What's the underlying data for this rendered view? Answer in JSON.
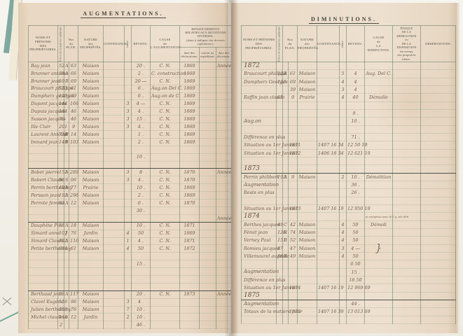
{
  "colors": {
    "paper_left": "#ead9c5",
    "paper_right": "#eee0cf",
    "ink": "#6e5c4a",
    "printed": "#4b4f46",
    "grid_line": "#8fa08c",
    "edge_teal": "#7fa8a0",
    "gutter_shadow": "#5a422c"
  },
  "left_page": {
    "title": "AUGMENTATIONS.",
    "columns": {
      "name": "NOMS ET PRÉNOMS\nDES\nPROPRIÉTAIRES.",
      "folio": "Folios de la matrice cadastrale.",
      "plan": "Nos\ndu\nPLAN.",
      "nature": "NATURE\ndes\nPROPRIÉTÉS.",
      "contenance": "CONTENANCE.",
      "classe": "classe",
      "revenu": "REVENU.",
      "cause": "CAUSE\nde\nL'AUGMENTATION.",
      "renseignements": "RENSEIGNEMENTS\nRELATIFS AUX MUTATIONS DIVERSES.\n(dates à indiquer des diverses opérations.)",
      "sub1": "date des\ndéclarations.",
      "sub2": "extrait ou\nexpédition.",
      "sub3": "date des\ndécisions."
    },
    "rows": [
      {
        "cells": [
          "Bay jean",
          "52",
          "A",
          "63",
          "Maison",
          "",
          "",
          "20 .",
          "C. N.",
          "1869",
          "",
          "Année"
        ]
      },
      {
        "cells": [
          "Brunner antoine",
          "59",
          "A",
          "66",
          "Maison",
          "",
          "",
          "2 .",
          "C. construction",
          "1869",
          "",
          ""
        ]
      },
      {
        "cells": [
          "Brunner jean",
          "59",
          "B",
          "69",
          "Maison",
          "",
          "",
          "20 ―",
          "C. N.",
          "1869",
          "",
          ""
        ]
      },
      {
        "cells": [
          "Braucourt philippe",
          "123",
          "",
          "61",
          "Maison",
          "",
          "",
          "6 .",
          "Aug.on Del C.",
          "1869",
          "",
          ""
        ]
      },
      {
        "cells": [
          "Dumpherz georges",
          "123",
          "",
          "69",
          "Maison",
          "",
          "",
          "6 .",
          "Aug.on de C.",
          "1869",
          "",
          ""
        ]
      },
      {
        "cells": [
          "Dupont jacques",
          "144",
          "",
          "166",
          "Maison",
          "",
          "3",
          "4 ―",
          "C. N.",
          "1869",
          "",
          ""
        ]
      },
      {
        "cells": [
          "Dupuis jacques",
          "144",
          "",
          "46",
          "Maison",
          "",
          "3",
          "4 .",
          "C. N.",
          "1869",
          "",
          ""
        ]
      },
      {
        "cells": [
          "Susson jacques",
          "79",
          "",
          "46",
          "Maison",
          "",
          "3",
          "15 .",
          "C. N.",
          "1869",
          "",
          ""
        ]
      },
      {
        "cells": [
          "Ille Clair",
          "201",
          "",
          "9",
          "Maison",
          "",
          "3",
          "4 .",
          "C. N.",
          "1869",
          "",
          ""
        ]
      },
      {
        "cells": [
          "Laurent Antoine",
          "738",
          "B",
          "14",
          "Maison",
          "",
          "",
          "1 .",
          "C. N.",
          "1869",
          "",
          ""
        ]
      },
      {
        "cells": [
          "Imnard jean",
          "149",
          "B",
          "103",
          "Maison",
          "",
          "",
          "2 .",
          "C. N.",
          "1869",
          "",
          ""
        ]
      },
      {
        "cls": "dashrow",
        "cells": [
          "",
          "",
          "",
          "",
          "",
          "",
          "",
          "",
          "",
          "",
          "",
          ""
        ]
      },
      {
        "cells": [
          "",
          "",
          "",
          "",
          "",
          "",
          "",
          "10 .",
          "",
          "",
          "",
          ""
        ]
      },
      {
        "cls": "hrule",
        "cells": [
          "",
          "",
          "",
          "",
          "",
          "",
          "",
          "",
          "",
          "",
          "",
          ""
        ]
      },
      {
        "cells": [
          "Bobet pierre",
          "152",
          "A",
          "289",
          "Maison",
          "",
          "3",
          "8",
          "C. N.",
          "1870",
          "",
          "Année"
        ]
      },
      {
        "cells": [
          "Robert Claude",
          "96",
          "S",
          "06",
          "Maison",
          "",
          "3",
          "4 .",
          "C. N.",
          "1870",
          "",
          ""
        ]
      },
      {
        "cells": [
          "Perrin berthelemy",
          "103",
          "A",
          "77",
          "Prairie",
          "",
          "",
          "10 .",
          "C. N.",
          "1869",
          "",
          ""
        ]
      },
      {
        "cells": [
          "Persson jean",
          "192",
          "A",
          "296",
          "Maison",
          "",
          "",
          "2 .",
          "C. N.",
          "1869",
          "",
          ""
        ]
      },
      {
        "cells": [
          "Perrote femme",
          "93",
          "A",
          "12",
          "Maison",
          "",
          "",
          "6 .",
          "C. N.",
          "1870",
          "",
          ""
        ]
      },
      {
        "cls": "tot",
        "cells": [
          "",
          "",
          "",
          "",
          "",
          "",
          "",
          "30 .",
          "",
          "",
          "",
          ""
        ]
      },
      {
        "cls": "hrule",
        "cells": [
          "",
          "",
          "",
          "",
          "",
          "",
          "",
          "",
          "",
          "",
          "",
          "Année"
        ]
      },
      {
        "cells": [
          "Dauphine Pier",
          "53",
          "A",
          "18",
          "Maison",
          "",
          "",
          "10 .",
          "C. N.",
          "1871",
          "",
          ""
        ]
      },
      {
        "cells": [
          "Simard anne",
          "101",
          "J",
          "76",
          "Jardin",
          "",
          "4",
          "50",
          "C. N.",
          "1869",
          "",
          ""
        ]
      },
      {
        "cells": [
          "Simard Claude",
          "192",
          "A",
          "116",
          "Maison",
          "",
          "1",
          "4 .",
          "C. N.",
          "1871",
          "",
          ""
        ]
      },
      {
        "cells": [
          "Petite berthelemy",
          "98",
          "L",
          "61",
          "Maison",
          "",
          "4",
          "50",
          "C. N.",
          "1872",
          "",
          ""
        ]
      },
      {
        "cls": "dashrow",
        "cells": [
          "",
          "",
          "",
          "",
          "",
          "",
          "",
          "",
          "",
          "",
          "",
          ""
        ]
      },
      {
        "cells": [
          "",
          "",
          "",
          "",
          "",
          "",
          "",
          "15 .",
          "",
          "",
          "",
          ""
        ]
      },
      {
        "cells": [
          "",
          "",
          "",
          "",
          "",
          "",
          "",
          "",
          "",
          "",
          "",
          ""
        ]
      },
      {
        "cells": [
          "",
          "",
          "",
          "",
          "",
          "",
          "",
          "",
          "",
          "",
          "",
          ""
        ]
      },
      {
        "cls": "hrule",
        "cells": [
          "",
          "",
          "",
          "",
          "",
          "",
          "",
          "",
          "",
          "",
          "",
          ""
        ]
      },
      {
        "cells": [
          "Berthaud jean",
          "93",
          "A",
          "117",
          "Maison",
          "",
          "",
          "20 .",
          "C. N.",
          "1873",
          "",
          "Année"
        ]
      },
      {
        "cells": [
          "Clavel Eugène",
          "116",
          "",
          "96",
          "Maison",
          "",
          "3",
          "4 .",
          "",
          "",
          "",
          ""
        ]
      },
      {
        "cells": [
          "Julien berthelemy",
          "103",
          "",
          "76",
          "Maison",
          "",
          "7",
          "10 .",
          "",
          "",
          "",
          ""
        ]
      },
      {
        "cells": [
          "Michel claude",
          "148",
          "a",
          "12",
          "Jardin",
          "",
          "2",
          "10 .",
          "",
          "",
          "",
          ""
        ]
      },
      {
        "cls": "tot",
        "cells": [
          "",
          "2",
          "",
          "",
          "",
          "",
          "",
          "46 .",
          "",
          "",
          "",
          ""
        ]
      }
    ]
  },
  "right_page": {
    "title": "DIMINUTIONS.",
    "columns": {
      "name": "NOMS ET PRÉNOMS\nDES\nPROPRIÉTAIRES.",
      "folio": "Folios de la matrice cadastrale.",
      "plan": "Nos\ndu\nPLAN.",
      "nature": "NATURE\ndes\nPROPRIÉTÉS.",
      "contenance": "CONTENANCE.",
      "classe": "classe",
      "revenu": "REVENU.",
      "cause": "CAUSE\nde\nLA DIMINUTION.",
      "epoque": "ÉPOQUE\nDE LA DÉMOLITION\nou\nDE LA DISPARITION\ndu revenu\ndes propriétés bâties.",
      "observations": "OBSERVATIONS."
    },
    "rows": [
      {
        "cls": "yearrow",
        "cells": [
          "1872",
          "",
          "",
          "",
          "",
          "",
          "",
          "",
          "",
          "",
          ""
        ]
      },
      {
        "cells": [
          "Braucourt philippe",
          "123",
          "A",
          "61",
          "Maison",
          "",
          "5",
          "4",
          "Aug. Del C.",
          "",
          ""
        ]
      },
      {
        "cells": [
          "Dumpherz Georges",
          "123",
          "",
          "69",
          "Maison",
          "",
          "4",
          "4",
          "",
          "",
          ""
        ]
      },
      {
        "cells": [
          "",
          "",
          "",
          "39",
          "Maison",
          "",
          "3",
          "4",
          "",
          "",
          ""
        ]
      },
      {
        "cells": [
          "Raffin jean claude",
          "61",
          "",
          "9",
          "Prairie",
          "",
          "4",
          "40",
          "Démolie",
          "",
          ""
        ]
      },
      {
        "cls": "dashrow",
        "cells": [
          "",
          "",
          "",
          "",
          "",
          "",
          "",
          "",
          "",
          "",
          ""
        ]
      },
      {
        "cells": [
          "",
          "",
          "",
          "",
          "",
          "",
          "",
          "9 .",
          "",
          "",
          ""
        ]
      },
      {
        "cls": "aug",
        "cells": [
          "Aug.on",
          "",
          "",
          "",
          "",
          "",
          "",
          "10 .",
          "",
          "",
          ""
        ]
      },
      {
        "cls": "dashrow",
        "cells": [
          "",
          "",
          "",
          "",
          "",
          "",
          "",
          "",
          "",
          "",
          ""
        ]
      },
      {
        "cells": [
          "Différence  en  plus",
          "",
          "",
          "",
          "",
          "",
          "",
          "71 .",
          "",
          "",
          ""
        ]
      },
      {
        "cells": [
          "Situation au 1er Janvier",
          "",
          "",
          "1871",
          "",
          "1407 16 34",
          "",
          "12 50 19",
          "",
          "",
          ""
        ]
      },
      {
        "cells": [
          "Situation au 1er Janvier",
          "",
          "",
          "1872",
          "",
          "1406 18 34",
          "",
          "12 621 19",
          "",
          "",
          ""
        ]
      },
      {
        "cells": [
          "",
          "",
          "",
          "",
          "",
          "",
          "",
          "",
          "",
          "",
          ""
        ]
      },
      {
        "cls": "yearrule",
        "cells": [
          "1873",
          "",
          "",
          "",
          "",
          "",
          "",
          "",
          "",
          "",
          ""
        ]
      },
      {
        "cells": [
          "Perrin philibert",
          "193",
          "A",
          "9",
          "Maison",
          "",
          "2",
          "10 .",
          "Démolition",
          "",
          ""
        ]
      },
      {
        "cls": "aug",
        "cells": [
          "Augmentation",
          "",
          "",
          "",
          "",
          "",
          "",
          "36 .",
          "",
          "",
          ""
        ]
      },
      {
        "cls": "tot",
        "cells": [
          "Reste  en  plus",
          "",
          "",
          "",
          "",
          "",
          "",
          "26 .",
          "",
          "",
          ""
        ]
      },
      {
        "cells": [
          "",
          "",
          "",
          "",
          "",
          "",
          "",
          "",
          "",
          "",
          ""
        ]
      },
      {
        "cells": [
          "Situation au 1er Janvier",
          "",
          "",
          "1873",
          "",
          "1407 16 19",
          "",
          "12 950 19",
          "",
          "",
          ""
        ]
      },
      {
        "cls": "yearrow note",
        "cells": [
          "1874",
          "",
          "",
          "",
          "",
          "",
          "",
          "",
          "m comprise avec le f. g. etc 600",
          "",
          ""
        ]
      },
      {
        "cells": [
          "Berthes jacques",
          "49",
          "C",
          "42",
          "Maison",
          "",
          "4",
          "50",
          "Démoli",
          "",
          ""
        ]
      },
      {
        "cells": [
          "Fémit jean",
          "126",
          "R",
          "74",
          "Maison",
          "",
          "4",
          "50",
          "",
          "",
          ""
        ]
      },
      {
        "cells": [
          "Verney Paul",
          "151",
          "B",
          "52",
          "Maison",
          "",
          "4",
          "50",
          "",
          "",
          ""
        ]
      },
      {
        "cls": "bracerow",
        "cells": [
          "Romieu jacques",
          "87",
          "",
          "47",
          "Maison",
          "",
          "3",
          "4 ―",
          "}",
          "",
          ""
        ]
      },
      {
        "cells": [
          "Villemaurel auguste",
          "88",
          "R",
          "49",
          "Maison",
          "",
          "4",
          "50",
          "",
          "",
          ""
        ]
      },
      {
        "cls": "tot",
        "cells": [
          "",
          "",
          "",
          "",
          "",
          "",
          "",
          "6 50",
          "",
          "",
          ""
        ]
      },
      {
        "cls": "aug",
        "cells": [
          "Augmentation",
          "",
          "",
          "",
          "",
          "",
          "",
          "15 .",
          "",
          "",
          ""
        ]
      },
      {
        "cls": "tot",
        "cells": [
          "Différence  en  plus",
          "",
          "",
          "",
          "",
          "",
          "",
          "18 50",
          "",
          "",
          ""
        ]
      },
      {
        "cells": [
          "Situation au 1er Janvier",
          "",
          "",
          "1874",
          "",
          "1407 16 19",
          "",
          "12 969 69",
          "",
          "",
          ""
        ]
      },
      {
        "cls": "yearrule",
        "cells": [
          "1875",
          "",
          "",
          "",
          "",
          "",
          "",
          "",
          "",
          "",
          ""
        ]
      },
      {
        "cls": "aug",
        "cells": [
          "Augmentation",
          "",
          "",
          "",
          "",
          "",
          "",
          "44 .",
          "",
          "",
          ""
        ]
      },
      {
        "cells": [
          "Totaux de la matière pour",
          "",
          "",
          "1875",
          "",
          "1407 16 39",
          "",
          "13 013 69",
          "",
          "",
          ""
        ]
      },
      {
        "cells": [
          "",
          "",
          "",
          "",
          "",
          "",
          "",
          "",
          "",
          "",
          ""
        ]
      }
    ]
  }
}
